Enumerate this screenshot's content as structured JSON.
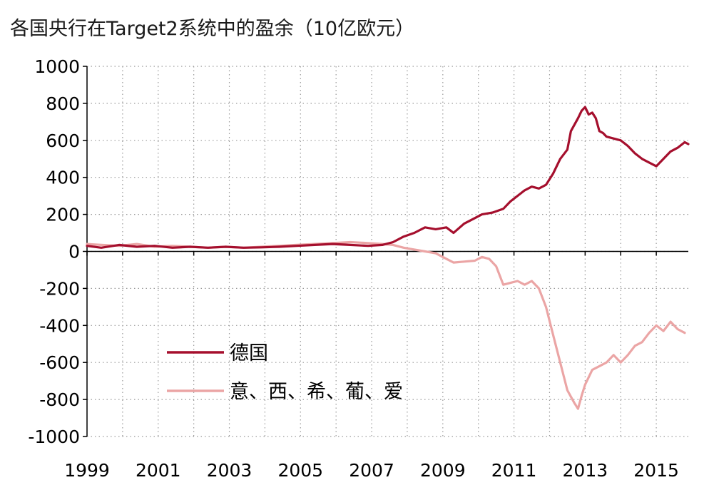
{
  "chart_data": {
    "type": "line",
    "title": "各国央行在Target2系统中的盈余（10亿欧元）",
    "xlabel": "",
    "ylabel": "",
    "xlim": [
      1999,
      2015.9
    ],
    "ylim": [
      -1000,
      1000
    ],
    "x_ticks": [
      1999,
      2001,
      2003,
      2005,
      2007,
      2009,
      2011,
      2013,
      2015
    ],
    "y_ticks": [
      1000,
      800,
      600,
      400,
      200,
      0,
      -200,
      -400,
      -600,
      -800,
      -1000
    ],
    "grid": "dotted",
    "legend_position": "lower-left",
    "series": [
      {
        "name": "德国",
        "color": "#a50f2d",
        "points": [
          [
            1999.0,
            30
          ],
          [
            1999.4,
            20
          ],
          [
            1999.9,
            35
          ],
          [
            2000.4,
            25
          ],
          [
            2000.9,
            30
          ],
          [
            2001.4,
            20
          ],
          [
            2001.9,
            25
          ],
          [
            2002.4,
            20
          ],
          [
            2002.9,
            25
          ],
          [
            2003.4,
            20
          ],
          [
            2003.9,
            22
          ],
          [
            2004.4,
            25
          ],
          [
            2004.9,
            30
          ],
          [
            2005.4,
            35
          ],
          [
            2005.9,
            40
          ],
          [
            2006.4,
            35
          ],
          [
            2006.9,
            30
          ],
          [
            2007.3,
            35
          ],
          [
            2007.6,
            50
          ],
          [
            2007.9,
            80
          ],
          [
            2008.2,
            100
          ],
          [
            2008.5,
            130
          ],
          [
            2008.8,
            120
          ],
          [
            2009.1,
            130
          ],
          [
            2009.3,
            100
          ],
          [
            2009.6,
            150
          ],
          [
            2009.9,
            180
          ],
          [
            2010.1,
            200
          ],
          [
            2010.4,
            210
          ],
          [
            2010.7,
            230
          ],
          [
            2010.9,
            270
          ],
          [
            2011.1,
            300
          ],
          [
            2011.3,
            330
          ],
          [
            2011.5,
            350
          ],
          [
            2011.7,
            340
          ],
          [
            2011.9,
            360
          ],
          [
            2012.1,
            420
          ],
          [
            2012.3,
            500
          ],
          [
            2012.5,
            550
          ],
          [
            2012.6,
            650
          ],
          [
            2012.8,
            720
          ],
          [
            2012.9,
            760
          ],
          [
            2013.0,
            780
          ],
          [
            2013.1,
            740
          ],
          [
            2013.2,
            750
          ],
          [
            2013.3,
            720
          ],
          [
            2013.4,
            650
          ],
          [
            2013.5,
            640
          ],
          [
            2013.6,
            620
          ],
          [
            2013.8,
            610
          ],
          [
            2014.0,
            600
          ],
          [
            2014.2,
            570
          ],
          [
            2014.4,
            530
          ],
          [
            2014.6,
            500
          ],
          [
            2014.8,
            480
          ],
          [
            2015.0,
            460
          ],
          [
            2015.2,
            500
          ],
          [
            2015.4,
            540
          ],
          [
            2015.6,
            560
          ],
          [
            2015.8,
            590
          ],
          [
            2015.9,
            580
          ]
        ]
      },
      {
        "name": "意、西、希、葡、爱",
        "color": "#eba5a5",
        "points": [
          [
            1999.0,
            40
          ],
          [
            1999.4,
            35
          ],
          [
            1999.9,
            30
          ],
          [
            2000.4,
            40
          ],
          [
            2000.9,
            25
          ],
          [
            2001.4,
            30
          ],
          [
            2001.9,
            25
          ],
          [
            2002.4,
            20
          ],
          [
            2002.9,
            25
          ],
          [
            2003.4,
            20
          ],
          [
            2003.9,
            25
          ],
          [
            2004.4,
            30
          ],
          [
            2004.9,
            35
          ],
          [
            2005.4,
            40
          ],
          [
            2005.9,
            45
          ],
          [
            2006.4,
            50
          ],
          [
            2006.9,
            45
          ],
          [
            2007.3,
            40
          ],
          [
            2007.6,
            35
          ],
          [
            2007.9,
            20
          ],
          [
            2008.2,
            10
          ],
          [
            2008.5,
            0
          ],
          [
            2008.8,
            -10
          ],
          [
            2009.1,
            -40
          ],
          [
            2009.3,
            -60
          ],
          [
            2009.6,
            -55
          ],
          [
            2009.9,
            -50
          ],
          [
            2010.1,
            -30
          ],
          [
            2010.3,
            -40
          ],
          [
            2010.5,
            -80
          ],
          [
            2010.7,
            -180
          ],
          [
            2010.9,
            -170
          ],
          [
            2011.1,
            -160
          ],
          [
            2011.3,
            -180
          ],
          [
            2011.5,
            -160
          ],
          [
            2011.7,
            -200
          ],
          [
            2011.9,
            -300
          ],
          [
            2012.1,
            -450
          ],
          [
            2012.3,
            -600
          ],
          [
            2012.5,
            -750
          ],
          [
            2012.7,
            -820
          ],
          [
            2012.8,
            -850
          ],
          [
            2012.9,
            -780
          ],
          [
            2013.0,
            -720
          ],
          [
            2013.2,
            -640
          ],
          [
            2013.4,
            -620
          ],
          [
            2013.6,
            -600
          ],
          [
            2013.8,
            -560
          ],
          [
            2014.0,
            -600
          ],
          [
            2014.2,
            -560
          ],
          [
            2014.4,
            -510
          ],
          [
            2014.6,
            -490
          ],
          [
            2014.8,
            -440
          ],
          [
            2015.0,
            -400
          ],
          [
            2015.2,
            -430
          ],
          [
            2015.4,
            -380
          ],
          [
            2015.6,
            -420
          ],
          [
            2015.8,
            -440
          ]
        ]
      }
    ]
  }
}
